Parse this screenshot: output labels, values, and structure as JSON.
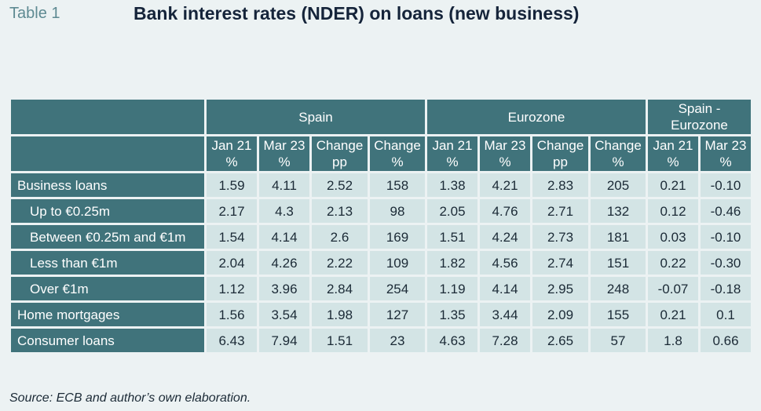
{
  "table_tag": "Table 1",
  "title": "Bank interest rates (NDER) on loans (new business)",
  "groups": [
    "Spain",
    "Eurozone",
    "Spain - Eurozone"
  ],
  "subheaders": [
    [
      "Jan 21",
      "%"
    ],
    [
      "Mar 23",
      "%"
    ],
    [
      "Change",
      "pp"
    ],
    [
      "Change",
      "%"
    ],
    [
      "Jan 21",
      "%"
    ],
    [
      "Mar 23",
      "%"
    ],
    [
      "Change",
      "pp"
    ],
    [
      "Change",
      "%"
    ],
    [
      "Jan 21",
      "%"
    ],
    [
      "Mar 23",
      "%"
    ]
  ],
  "rows": [
    {
      "label": "Business loans",
      "indent": false,
      "values": [
        "1.59",
        "4.11",
        "2.52",
        "158",
        "1.38",
        "4.21",
        "2.83",
        "205",
        "0.21",
        "-0.10"
      ]
    },
    {
      "label": "Up to €0.25m",
      "indent": true,
      "values": [
        "2.17",
        "4.3",
        "2.13",
        "98",
        "2.05",
        "4.76",
        "2.71",
        "132",
        "0.12",
        "-0.46"
      ]
    },
    {
      "label": "Between €0.25m and €1m",
      "indent": true,
      "values": [
        "1.54",
        "4.14",
        "2.6",
        "169",
        "1.51",
        "4.24",
        "2.73",
        "181",
        "0.03",
        "-0.10"
      ]
    },
    {
      "label": "Less than €1m",
      "indent": true,
      "values": [
        "2.04",
        "4.26",
        "2.22",
        "109",
        "1.82",
        "4.56",
        "2.74",
        "151",
        "0.22",
        "-0.30"
      ]
    },
    {
      "label": "Over €1m",
      "indent": true,
      "values": [
        "1.12",
        "3.96",
        "2.84",
        "254",
        "1.19",
        "4.14",
        "2.95",
        "248",
        "-0.07",
        "-0.18"
      ]
    },
    {
      "label": "Home mortgages",
      "indent": false,
      "values": [
        "1.56",
        "3.54",
        "1.98",
        "127",
        "1.35",
        "3.44",
        "2.09",
        "155",
        "0.21",
        "0.1"
      ]
    },
    {
      "label": "Consumer loans",
      "indent": false,
      "values": [
        "6.43",
        "7.94",
        "1.51",
        "23",
        "4.63",
        "7.28",
        "2.65",
        "57",
        "1.8",
        "0.66"
      ]
    }
  ],
  "source": "Source: ECB and author’s own elaboration."
}
